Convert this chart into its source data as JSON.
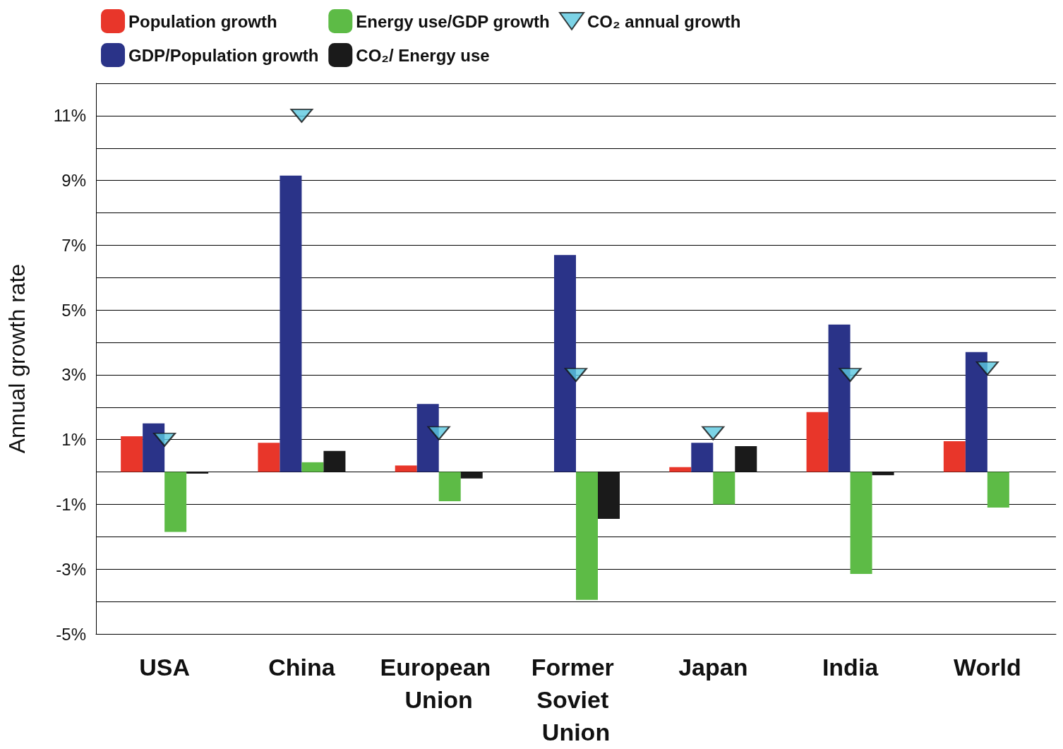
{
  "chart_data": {
    "type": "bar",
    "ylabel": "Annual growth rate",
    "categories": [
      "USA",
      "China",
      "European Union",
      "Former Soviet Union",
      "Japan",
      "India",
      "World"
    ],
    "series": [
      {
        "name": "Population growth",
        "color": "#e8362a",
        "values": [
          1.1,
          0.9,
          0.2,
          0,
          0.15,
          1.85,
          0.95
        ]
      },
      {
        "name": "GDP/Population growth",
        "color": "#2a3388",
        "values": [
          1.5,
          9.15,
          2.1,
          6.7,
          0.9,
          4.55,
          3.7
        ]
      },
      {
        "name": "Energy use/GDP growth",
        "color": "#5dbb46",
        "values": [
          -1.85,
          0.3,
          -0.9,
          -3.95,
          -1.0,
          -3.15,
          -1.1
        ]
      },
      {
        "name": "CO₂/ Energy use",
        "color": "#1a1a1a",
        "values": [
          -0.05,
          0.65,
          -0.2,
          -1.45,
          0.8,
          -0.1,
          0
        ]
      },
      {
        "name": "CO₂ annual growth",
        "color": "#5bc8e0",
        "type": "scatter",
        "marker": "triangle",
        "x": [
          "USA",
          "China",
          "European Union",
          "Former Soviet Union",
          "Japan",
          "India",
          "World"
        ],
        "values": [
          1.0,
          11.0,
          1.2,
          3.0,
          1.2,
          3.0,
          3.2
        ]
      }
    ],
    "ylim": [
      -5,
      12
    ],
    "yticks": [
      {
        "value": -5,
        "label": "-5%"
      },
      {
        "value": -4,
        "label": null
      },
      {
        "value": -3,
        "label": "-3%"
      },
      {
        "value": -2,
        "label": null
      },
      {
        "value": -1,
        "label": "-1%"
      },
      {
        "value": 0,
        "label": null
      },
      {
        "value": 1,
        "label": "1%"
      },
      {
        "value": 2,
        "label": null
      },
      {
        "value": 3,
        "label": "3%"
      },
      {
        "value": 4,
        "label": null
      },
      {
        "value": 5,
        "label": "5%"
      },
      {
        "value": 6,
        "label": null
      },
      {
        "value": 7,
        "label": "7%"
      },
      {
        "value": 8,
        "label": null
      },
      {
        "value": 9,
        "label": "9%"
      },
      {
        "value": 10,
        "label": null
      },
      {
        "value": 11,
        "label": "11%"
      },
      {
        "value": 12,
        "label": null
      }
    ],
    "grid": "y",
    "legend": "top"
  }
}
